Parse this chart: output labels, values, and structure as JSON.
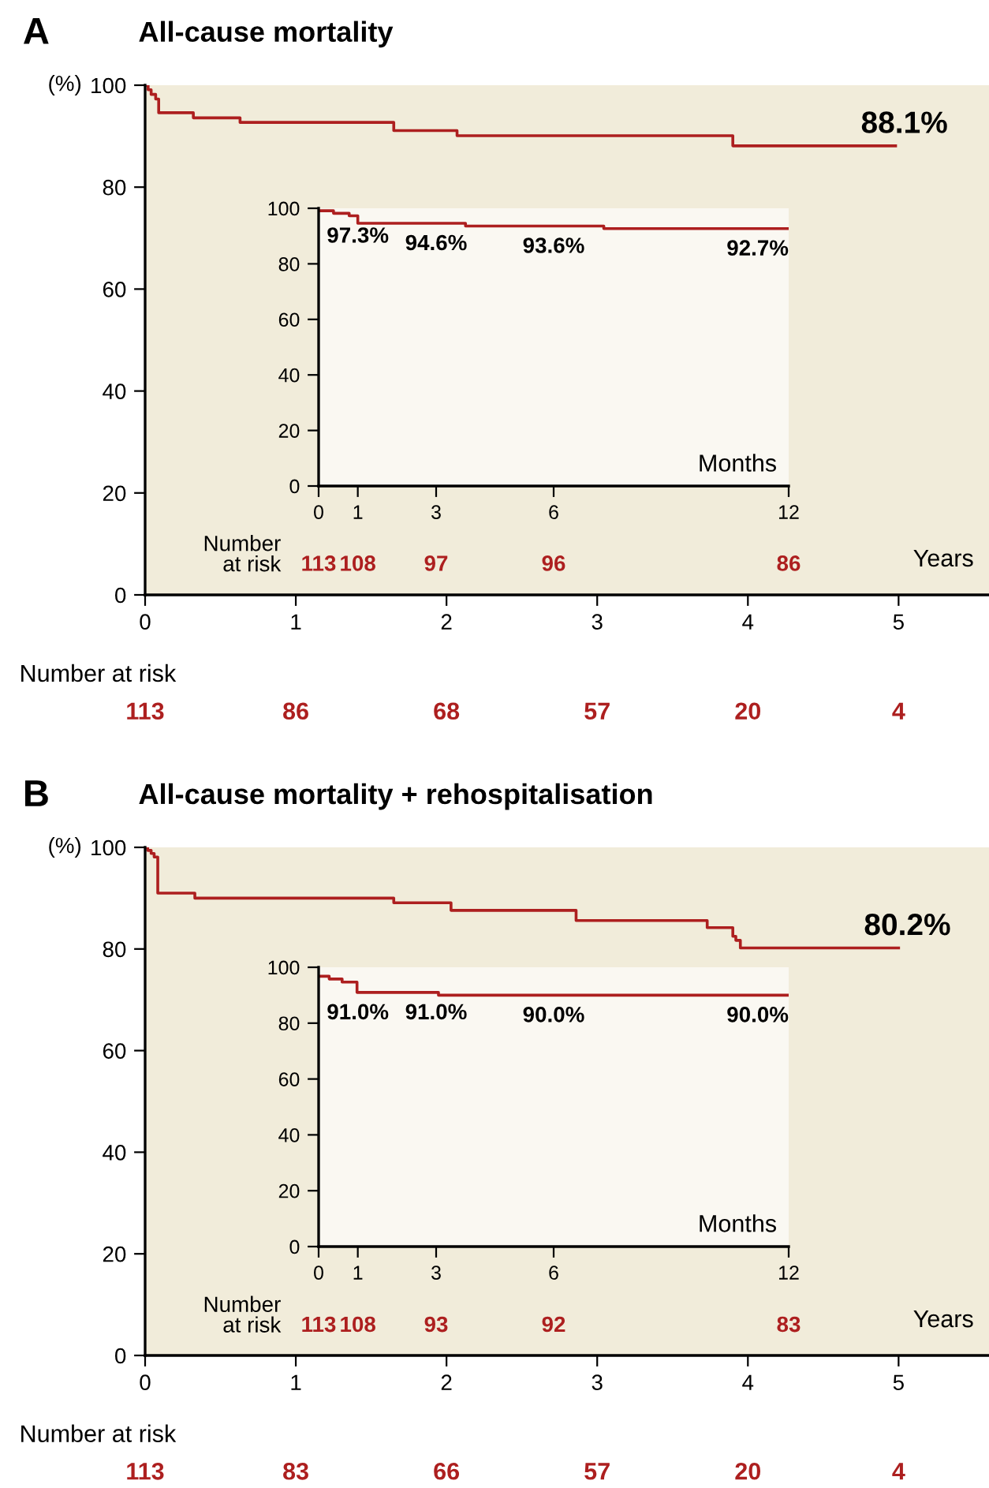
{
  "chart_data": [
    {
      "type": "step",
      "title": "All-cause mortality",
      "xlabel": "Years",
      "ylabel": "(%)",
      "x": [
        0,
        0.02,
        0.04,
        0.07,
        0.09,
        0.32,
        0.63,
        1.65,
        2.07,
        3.9,
        4.98
      ],
      "series": [
        {
          "color": "#ad1f1f",
          "values": [
            100,
            99.1,
            98.2,
            97.3,
            94.6,
            93.6,
            92.7,
            91.1,
            90.1,
            88.1,
            88.1
          ]
        }
      ],
      "xlim": [
        0,
        5.6
      ],
      "ylim": [
        0,
        100
      ],
      "xticks": [
        0,
        1,
        2,
        3,
        4,
        5
      ],
      "yticks": [
        0,
        20,
        40,
        60,
        80,
        100
      ],
      "annotations": [
        "A",
        "Number at risk",
        {
          "text": "88.1%",
          "x": 4.98,
          "y": 88.1
        },
        "113",
        "86",
        "68",
        "57",
        "20",
        "4"
      ]
    },
    {
      "type": "step",
      "xlabel": "Months",
      "x": [
        0,
        0.38,
        0.78,
        1.0,
        3.75,
        7.28,
        12
      ],
      "series": [
        {
          "color": "#ad1f1f",
          "values": [
            99.1,
            98.2,
            97.3,
            94.6,
            93.6,
            92.7,
            92.7
          ]
        }
      ],
      "xlim": [
        0,
        12
      ],
      "ylim": [
        0,
        100
      ],
      "xticks": [
        0,
        1,
        3,
        6,
        12
      ],
      "yticks": [
        0,
        20,
        40,
        60,
        80,
        100
      ],
      "annotations": [
        "Number\nat risk",
        {
          "text": "97.3%",
          "x": 1,
          "y": 97.3
        },
        {
          "text": "94.6%",
          "x": 3,
          "y": 94.6
        },
        {
          "text": "93.6%",
          "x": 6,
          "y": 93.6
        },
        {
          "text": "92.7%",
          "x": 12,
          "y": 92.7
        },
        "113",
        "108",
        "97",
        "96",
        "86"
      ]
    },
    {
      "type": "step",
      "title": "All-cause mortality + rehospitalisation",
      "xlabel": "Years",
      "ylabel": "(%)",
      "x": [
        0,
        0.017,
        0.04,
        0.06,
        0.084,
        0.33,
        1.65,
        2.03,
        2.86,
        3.73,
        3.9,
        3.92,
        3.95,
        5.0
      ],
      "series": [
        {
          "color": "#ad1f1f",
          "values": [
            100,
            99.4,
            98.8,
            98.1,
            91.0,
            90.0,
            89.1,
            87.6,
            85.6,
            84.2,
            82.5,
            81.7,
            80.2,
            80.2
          ]
        }
      ],
      "xlim": [
        0,
        5.6
      ],
      "ylim": [
        0,
        100
      ],
      "xticks": [
        0,
        1,
        2,
        3,
        4,
        5
      ],
      "yticks": [
        0,
        20,
        40,
        60,
        80,
        100
      ],
      "annotations": [
        "B",
        "Number at risk",
        {
          "text": "80.2%",
          "x": 5.0,
          "y": 80.2
        },
        "113",
        "83",
        "66",
        "57",
        "20",
        "4"
      ]
    },
    {
      "type": "step",
      "xlabel": "Months",
      "x": [
        0,
        0.27,
        0.6,
        0.98,
        3.06,
        12
      ],
      "series": [
        {
          "color": "#ad1f1f",
          "values": [
            96.8,
            95.8,
            94.7,
            91.0,
            90.0,
            90.0
          ]
        }
      ],
      "xlim": [
        0,
        12
      ],
      "ylim": [
        0,
        100
      ],
      "xticks": [
        0,
        1,
        3,
        6,
        12
      ],
      "yticks": [
        0,
        20,
        40,
        60,
        80,
        100
      ],
      "annotations": [
        "Number\nat risk",
        {
          "text": "91.0%",
          "x": 1,
          "y": 91.0
        },
        {
          "text": "91.0%",
          "x": 3,
          "y": 91.0
        },
        {
          "text": "90.0%",
          "x": 6,
          "y": 90.0
        },
        {
          "text": "90.0%",
          "x": 12,
          "y": 90.0
        },
        "113",
        "108",
        "93",
        "92",
        "83"
      ]
    }
  ]
}
